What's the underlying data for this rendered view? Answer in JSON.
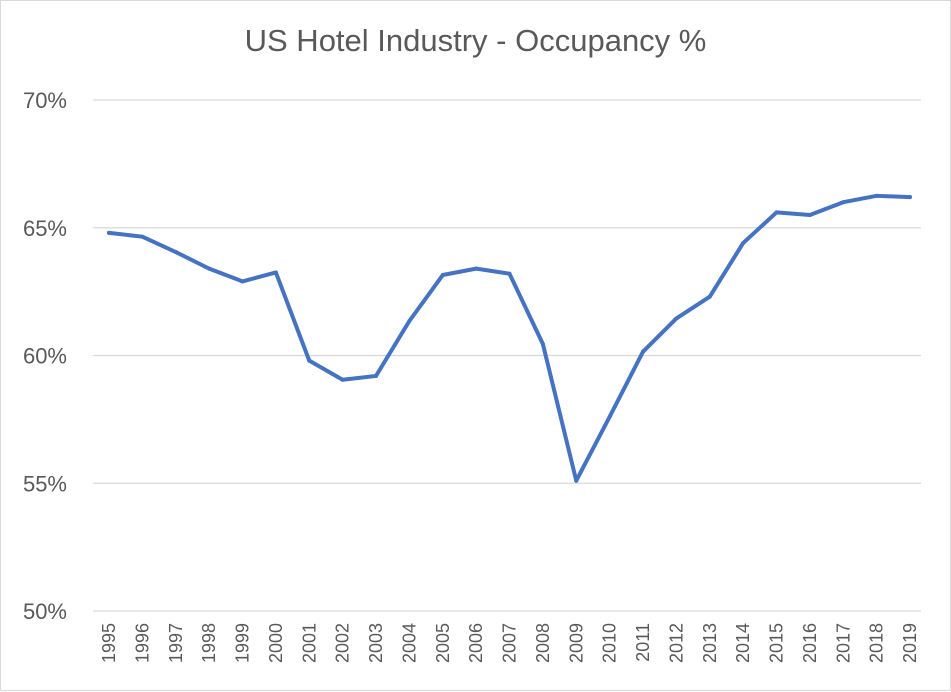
{
  "chart_data": {
    "type": "line",
    "title": "US Hotel Industry - Occupancy %",
    "xlabel": "",
    "ylabel": "",
    "ylim": [
      50,
      70
    ],
    "yticks": [
      50,
      55,
      60,
      65,
      70
    ],
    "ytick_labels": [
      "50%",
      "55%",
      "60%",
      "65%",
      "70%"
    ],
    "grid": true,
    "legend": "none",
    "categories": [
      "1995",
      "1996",
      "1997",
      "1998",
      "1999",
      "2000",
      "2001",
      "2002",
      "2003",
      "2004",
      "2005",
      "2006",
      "2007",
      "2008",
      "2009",
      "2010",
      "2011",
      "2012",
      "2013",
      "2014",
      "2015",
      "2016",
      "2017",
      "2018",
      "2019"
    ],
    "series": [
      {
        "name": "Occupancy %",
        "color": "#4472C4",
        "values": [
          64.8,
          64.65,
          64.05,
          63.4,
          62.9,
          63.25,
          59.8,
          59.05,
          59.2,
          61.35,
          63.15,
          63.4,
          63.2,
          60.45,
          55.1,
          57.6,
          60.15,
          61.45,
          62.3,
          64.4,
          65.6,
          65.5,
          66.0,
          66.25,
          66.2
        ]
      }
    ]
  }
}
